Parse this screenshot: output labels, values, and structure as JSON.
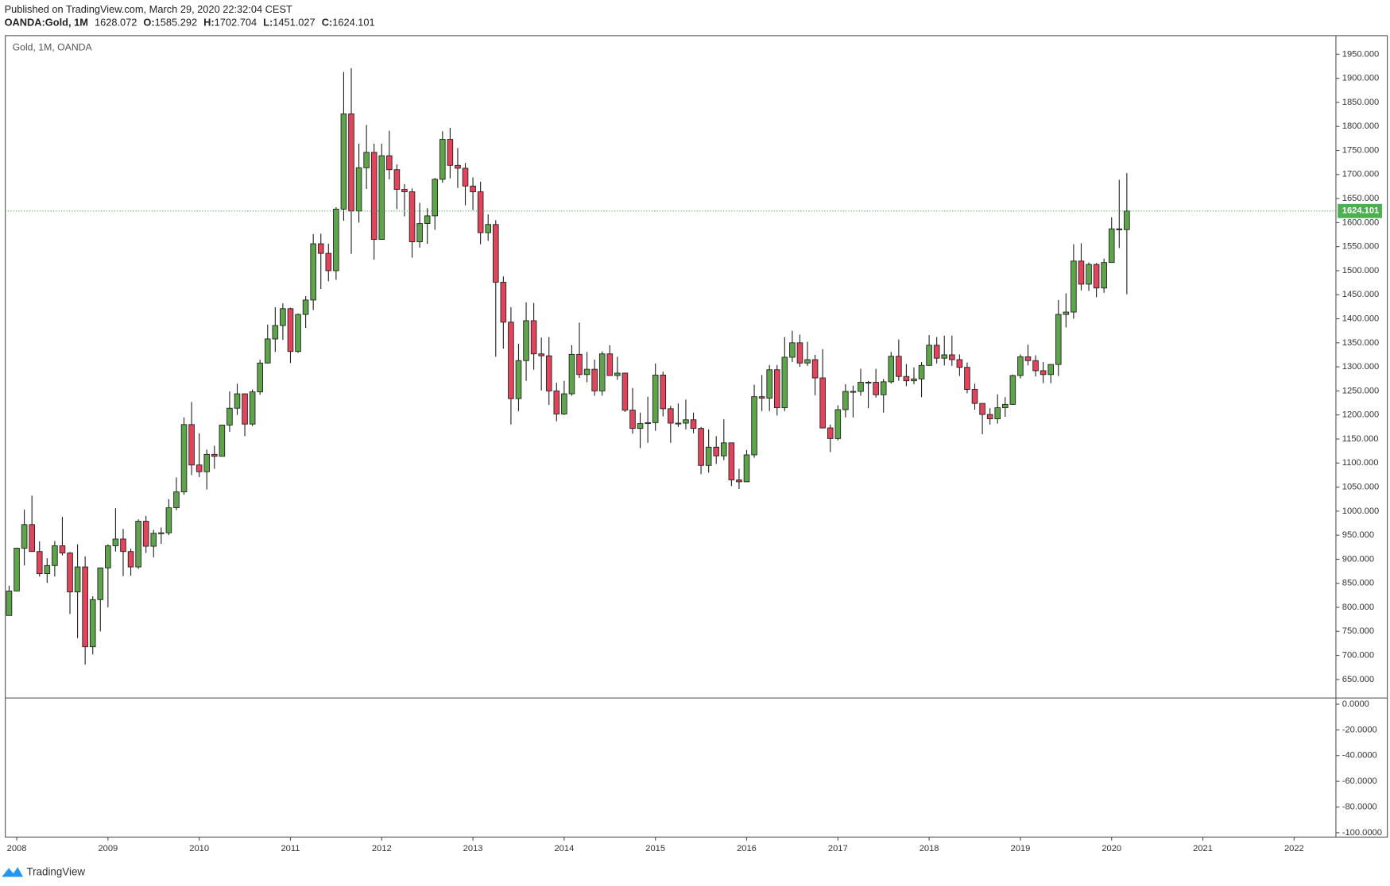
{
  "header": {
    "published": "Published on TradingView.com, March 29, 2020 22:32:04 CEST",
    "symbol": "OANDA:Gold, 1M",
    "price": 1628.072,
    "labels": [
      "O:",
      "H:",
      "L:",
      "C:"
    ]
  },
  "footer": {
    "brand": "TradingView"
  },
  "chart_data": {
    "type": "candlestick",
    "title": "Gold, 1M, OANDA",
    "up_color": "#5da44a",
    "down_color": "#e2445c",
    "wick_color": "#222222",
    "last_line_color": "#4caf50",
    "ylim": [
      611.4,
      1988.7
    ],
    "yticks": [
      {
        "value": 650,
        "label": "650.000"
      },
      {
        "value": 700,
        "label": "700.000"
      },
      {
        "value": 750,
        "label": "750.000"
      },
      {
        "value": 800,
        "label": "800.000"
      },
      {
        "value": 850,
        "label": "850.000"
      },
      {
        "value": 900,
        "label": "900.000"
      },
      {
        "value": 950,
        "label": "950.000"
      },
      {
        "value": 1000,
        "label": "1000.000"
      },
      {
        "value": 1050,
        "label": "1050.000"
      },
      {
        "value": 1100,
        "label": "1100.000"
      },
      {
        "value": 1150,
        "label": "1150.000"
      },
      {
        "value": 1200,
        "label": "1200.000"
      },
      {
        "value": 1250,
        "label": "1250.000"
      },
      {
        "value": 1300,
        "label": "1300.000"
      },
      {
        "value": 1350,
        "label": "1350.000"
      },
      {
        "value": 1400,
        "label": "1400.000"
      },
      {
        "value": 1450,
        "label": "1450.000"
      },
      {
        "value": 1500,
        "label": "1500.000"
      },
      {
        "value": 1550,
        "label": "1550.000"
      },
      {
        "value": 1600,
        "label": "1600.000"
      },
      {
        "value": 1650,
        "label": "1650.000"
      },
      {
        "value": 1700,
        "label": "1700.000"
      },
      {
        "value": 1750,
        "label": "1750.000"
      },
      {
        "value": 1800,
        "label": "1800.000"
      },
      {
        "value": 1850,
        "label": "1850.000"
      },
      {
        "value": 1900,
        "label": "1900.000"
      },
      {
        "value": 1950,
        "label": "1950.000"
      }
    ],
    "lower_pane": {
      "ylim": [
        -103.4,
        4.8
      ],
      "yticks": [
        {
          "value": 0,
          "label": "0.0000"
        },
        {
          "value": -20,
          "label": "-20.0000"
        },
        {
          "value": -40,
          "label": "-40.0000"
        },
        {
          "value": -60,
          "label": "-60.0000"
        },
        {
          "value": -80,
          "label": "-80.0000"
        },
        {
          "value": -100,
          "label": "-100.0000"
        }
      ]
    },
    "categories": [
      null,
      "2008",
      null,
      null,
      null,
      null,
      null,
      null,
      null,
      null,
      null,
      null,
      null,
      "2009",
      null,
      null,
      null,
      null,
      null,
      null,
      null,
      null,
      null,
      null,
      null,
      "2010",
      null,
      null,
      null,
      null,
      null,
      null,
      null,
      null,
      null,
      null,
      null,
      "2011",
      null,
      null,
      null,
      null,
      null,
      null,
      null,
      null,
      null,
      null,
      null,
      "2012",
      null,
      null,
      null,
      null,
      null,
      null,
      null,
      null,
      null,
      null,
      null,
      "2013",
      null,
      null,
      null,
      null,
      null,
      null,
      null,
      null,
      null,
      null,
      null,
      "2014",
      null,
      null,
      null,
      null,
      null,
      null,
      null,
      null,
      null,
      null,
      null,
      "2015",
      null,
      null,
      null,
      null,
      null,
      null,
      null,
      null,
      null,
      null,
      null,
      "2016",
      null,
      null,
      null,
      null,
      null,
      null,
      null,
      null,
      null,
      null,
      null,
      "2017",
      null,
      null,
      null,
      null,
      null,
      null,
      null,
      null,
      null,
      null,
      null,
      "2018",
      null,
      null,
      null,
      null,
      null,
      null,
      null,
      null,
      null,
      null,
      null,
      "2019",
      null,
      null,
      null,
      null,
      null,
      null,
      null,
      null,
      null,
      null,
      null,
      "2020",
      null,
      null,
      null,
      null,
      null,
      null,
      null,
      null,
      null,
      null,
      null,
      "2021",
      null,
      null,
      null,
      null,
      null,
      null,
      null,
      null,
      null,
      null,
      null,
      "2022",
      null,
      null,
      null,
      null,
      null
    ],
    "ohlc": [
      [
        783,
        845,
        783,
        834
      ],
      [
        834,
        924,
        834,
        923
      ],
      [
        923,
        1003,
        887,
        972
      ],
      [
        972,
        1032,
        916,
        916
      ],
      [
        916,
        937,
        864,
        870
      ],
      [
        870,
        902,
        851,
        887
      ],
      [
        887,
        938,
        864,
        928
      ],
      [
        928,
        988,
        908,
        913
      ],
      [
        913,
        915,
        786,
        832
      ],
      [
        832,
        931,
        736,
        884
      ],
      [
        884,
        906,
        681,
        718
      ],
      [
        718,
        823,
        702,
        816
      ],
      [
        816,
        882,
        750,
        882
      ],
      [
        882,
        931,
        800,
        928
      ],
      [
        928,
        1006,
        916,
        942
      ],
      [
        942,
        963,
        865,
        916
      ],
      [
        916,
        922,
        866,
        884
      ],
      [
        884,
        983,
        880,
        979
      ],
      [
        979,
        990,
        913,
        927
      ],
      [
        927,
        961,
        904,
        954
      ],
      [
        954,
        966,
        932,
        955
      ],
      [
        955,
        1025,
        950,
        1007
      ],
      [
        1007,
        1070,
        1002,
        1040
      ],
      [
        1040,
        1195,
        1034,
        1180
      ],
      [
        1180,
        1227,
        1075,
        1096
      ],
      [
        1096,
        1162,
        1071,
        1082
      ],
      [
        1082,
        1128,
        1045,
        1118
      ],
      [
        1118,
        1136,
        1088,
        1114
      ],
      [
        1114,
        1180,
        1114,
        1179
      ],
      [
        1179,
        1249,
        1165,
        1214
      ],
      [
        1214,
        1265,
        1200,
        1244
      ],
      [
        1244,
        1244,
        1156,
        1181
      ],
      [
        1181,
        1253,
        1177,
        1248
      ],
      [
        1248,
        1315,
        1242,
        1308
      ],
      [
        1308,
        1388,
        1307,
        1358
      ],
      [
        1358,
        1424,
        1331,
        1386
      ],
      [
        1386,
        1432,
        1356,
        1421
      ],
      [
        1421,
        1423,
        1308,
        1332
      ],
      [
        1332,
        1411,
        1329,
        1409
      ],
      [
        1409,
        1447,
        1381,
        1439
      ],
      [
        1439,
        1576,
        1418,
        1556
      ],
      [
        1556,
        1577,
        1462,
        1536
      ],
      [
        1536,
        1556,
        1478,
        1500
      ],
      [
        1500,
        1632,
        1481,
        1628
      ],
      [
        1628,
        1913,
        1604,
        1826
      ],
      [
        1826,
        1921,
        1535,
        1624
      ],
      [
        1624,
        1764,
        1600,
        1714
      ],
      [
        1714,
        1803,
        1670,
        1746
      ],
      [
        1746,
        1764,
        1523,
        1565
      ],
      [
        1565,
        1764,
        1565,
        1739
      ],
      [
        1739,
        1791,
        1690,
        1710
      ],
      [
        1710,
        1721,
        1628,
        1669
      ],
      [
        1669,
        1680,
        1613,
        1664
      ],
      [
        1664,
        1671,
        1527,
        1560
      ],
      [
        1560,
        1641,
        1548,
        1598
      ],
      [
        1598,
        1630,
        1556,
        1614
      ],
      [
        1614,
        1693,
        1585,
        1690
      ],
      [
        1690,
        1790,
        1683,
        1773
      ],
      [
        1773,
        1797,
        1692,
        1719
      ],
      [
        1719,
        1755,
        1672,
        1713
      ],
      [
        1713,
        1724,
        1636,
        1676
      ],
      [
        1676,
        1694,
        1626,
        1664
      ],
      [
        1664,
        1685,
        1555,
        1579
      ],
      [
        1579,
        1617,
        1562,
        1596
      ],
      [
        1596,
        1605,
        1321,
        1476
      ],
      [
        1476,
        1488,
        1338,
        1393
      ],
      [
        1393,
        1424,
        1180,
        1234
      ],
      [
        1234,
        1348,
        1208,
        1313
      ],
      [
        1313,
        1434,
        1271,
        1396
      ],
      [
        1396,
        1433,
        1294,
        1327
      ],
      [
        1327,
        1361,
        1251,
        1323
      ],
      [
        1323,
        1362,
        1221,
        1250
      ],
      [
        1250,
        1267,
        1187,
        1202
      ],
      [
        1202,
        1271,
        1200,
        1244
      ],
      [
        1244,
        1345,
        1240,
        1326
      ],
      [
        1326,
        1392,
        1277,
        1284
      ],
      [
        1284,
        1331,
        1268,
        1295
      ],
      [
        1295,
        1315,
        1240,
        1250
      ],
      [
        1250,
        1332,
        1240,
        1327
      ],
      [
        1327,
        1345,
        1281,
        1282
      ],
      [
        1282,
        1321,
        1273,
        1287
      ],
      [
        1287,
        1288,
        1206,
        1210
      ],
      [
        1210,
        1256,
        1161,
        1172
      ],
      [
        1172,
        1205,
        1131,
        1182
      ],
      [
        1182,
        1238,
        1142,
        1184
      ],
      [
        1184,
        1307,
        1167,
        1283
      ],
      [
        1283,
        1290,
        1197,
        1213
      ],
      [
        1213,
        1219,
        1142,
        1183
      ],
      [
        1183,
        1224,
        1175,
        1183
      ],
      [
        1183,
        1232,
        1170,
        1190
      ],
      [
        1190,
        1205,
        1162,
        1172
      ],
      [
        1172,
        1175,
        1077,
        1095
      ],
      [
        1095,
        1170,
        1080,
        1133
      ],
      [
        1133,
        1156,
        1098,
        1115
      ],
      [
        1115,
        1191,
        1106,
        1142
      ],
      [
        1142,
        1142,
        1052,
        1065
      ],
      [
        1065,
        1088,
        1046,
        1061
      ],
      [
        1061,
        1127,
        1062,
        1117
      ],
      [
        1117,
        1263,
        1111,
        1238
      ],
      [
        1238,
        1283,
        1208,
        1235
      ],
      [
        1235,
        1304,
        1208,
        1294
      ],
      [
        1294,
        1304,
        1199,
        1215
      ],
      [
        1215,
        1362,
        1208,
        1320
      ],
      [
        1320,
        1375,
        1310,
        1350
      ],
      [
        1350,
        1367,
        1300,
        1308
      ],
      [
        1308,
        1352,
        1302,
        1315
      ],
      [
        1315,
        1325,
        1241,
        1277
      ],
      [
        1277,
        1337,
        1172,
        1173
      ],
      [
        1173,
        1180,
        1123,
        1151
      ],
      [
        1151,
        1220,
        1147,
        1211
      ],
      [
        1211,
        1264,
        1195,
        1249
      ],
      [
        1249,
        1261,
        1195,
        1249
      ],
      [
        1249,
        1296,
        1240,
        1268
      ],
      [
        1268,
        1271,
        1214,
        1268
      ],
      [
        1268,
        1296,
        1236,
        1242
      ],
      [
        1242,
        1275,
        1205,
        1269
      ],
      [
        1269,
        1331,
        1265,
        1322
      ],
      [
        1322,
        1357,
        1271,
        1280
      ],
      [
        1280,
        1306,
        1260,
        1271
      ],
      [
        1271,
        1299,
        1264,
        1275
      ],
      [
        1275,
        1310,
        1237,
        1303
      ],
      [
        1303,
        1366,
        1302,
        1345
      ],
      [
        1345,
        1362,
        1307,
        1318
      ],
      [
        1318,
        1365,
        1303,
        1325
      ],
      [
        1325,
        1365,
        1302,
        1315
      ],
      [
        1315,
        1326,
        1281,
        1299
      ],
      [
        1299,
        1309,
        1245,
        1253
      ],
      [
        1253,
        1265,
        1211,
        1224
      ],
      [
        1224,
        1224,
        1160,
        1201
      ],
      [
        1201,
        1214,
        1180,
        1192
      ],
      [
        1192,
        1243,
        1182,
        1215
      ],
      [
        1215,
        1237,
        1196,
        1222
      ],
      [
        1222,
        1284,
        1221,
        1282
      ],
      [
        1282,
        1326,
        1276,
        1321
      ],
      [
        1321,
        1346,
        1303,
        1313
      ],
      [
        1313,
        1324,
        1280,
        1292
      ],
      [
        1292,
        1310,
        1266,
        1284
      ],
      [
        1284,
        1306,
        1266,
        1305
      ],
      [
        1305,
        1439,
        1281,
        1409
      ],
      [
        1409,
        1453,
        1382,
        1414
      ],
      [
        1414,
        1555,
        1400,
        1520
      ],
      [
        1520,
        1557,
        1459,
        1472
      ],
      [
        1472,
        1517,
        1458,
        1513
      ],
      [
        1513,
        1516,
        1445,
        1464
      ],
      [
        1464,
        1525,
        1454,
        1517
      ],
      [
        1517,
        1611,
        1517,
        1587
      ],
      [
        1587,
        1689,
        1547,
        1585
      ],
      [
        1585.292,
        1702.704,
        1451.027,
        1624.101
      ],
      null,
      null,
      null,
      null,
      null,
      null,
      null,
      null,
      null,
      null,
      null,
      null,
      null,
      null,
      null,
      null,
      null,
      null,
      null,
      null,
      null,
      null,
      null,
      null,
      null,
      null,
      null
    ]
  }
}
